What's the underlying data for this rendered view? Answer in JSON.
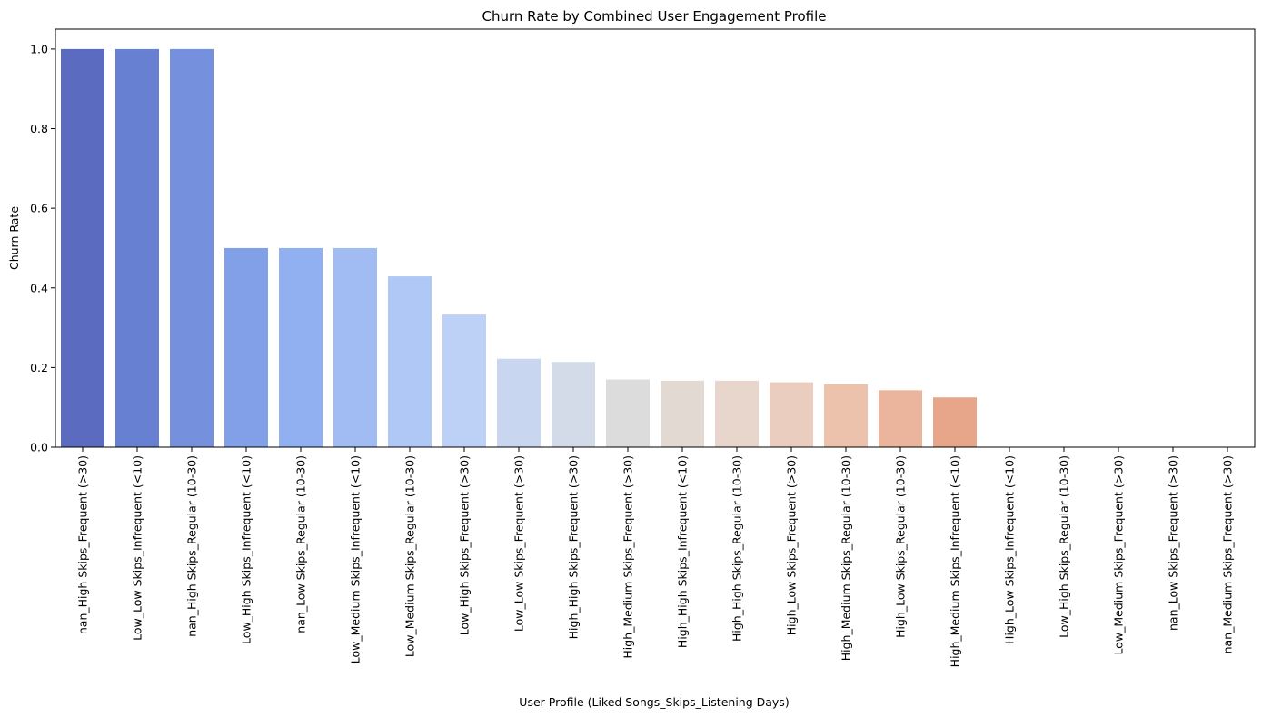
{
  "chart_data": {
    "type": "bar",
    "title": "Churn Rate by Combined User Engagement Profile",
    "xlabel": "User Profile (Liked Songs_Skips_Listening Days)",
    "ylabel": "Churn Rate",
    "ylim": [
      0,
      1.05
    ],
    "yticks": [
      "0.0",
      "0.2",
      "0.4",
      "0.6",
      "0.8",
      "1.0"
    ],
    "grid": false,
    "legend": "none",
    "categories": [
      "nan_High Skips_Frequent (>30)",
      "Low_Low Skips_Infrequent (<10)",
      "nan_High Skips_Regular (10-30)",
      "Low_High Skips_Infrequent (<10)",
      "nan_Low Skips_Regular (10-30)",
      "Low_Medium Skips_Infrequent (<10)",
      "Low_Medium Skips_Regular (10-30)",
      "Low_High Skips_Frequent (>30)",
      "Low_Low Skips_Frequent (>30)",
      "High_High Skips_Frequent (>30)",
      "High_Medium Skips_Frequent (>30)",
      "High_High Skips_Infrequent (<10)",
      "High_High Skips_Regular (10-30)",
      "High_Low Skips_Frequent (>30)",
      "High_Medium Skips_Regular (10-30)",
      "High_Low Skips_Regular (10-30)",
      "High_Medium Skips_Infrequent (<10)",
      "High_Low Skips_Infrequent (<10)",
      "Low_High Skips_Regular (10-30)",
      "Low_Medium Skips_Frequent (>30)",
      "nan_Low Skips_Frequent (>30)",
      "nan_Medium Skips_Frequent (>30)"
    ],
    "values": [
      1.0,
      1.0,
      1.0,
      0.5,
      0.5,
      0.5,
      0.429,
      0.333,
      0.222,
      0.214,
      0.17,
      0.167,
      0.167,
      0.163,
      0.158,
      0.143,
      0.125,
      0,
      0,
      0,
      0,
      0
    ],
    "colors": [
      "#5b6cc0",
      "#6880d2",
      "#7591de",
      "#82a0e8",
      "#91b0f1",
      "#a1bbf3",
      "#b0c8f6",
      "#bdd0f5",
      "#c9d6ef",
      "#d4dbe8",
      "#dcdcdd",
      "#e3d9d3",
      "#e8d5cb",
      "#ebcdbf",
      "#edc2ac",
      "#ebb49c",
      "#e7a68a",
      "#e39678",
      "#dd8566",
      "#d57154",
      "#cc5d44",
      "#c24a37"
    ]
  }
}
